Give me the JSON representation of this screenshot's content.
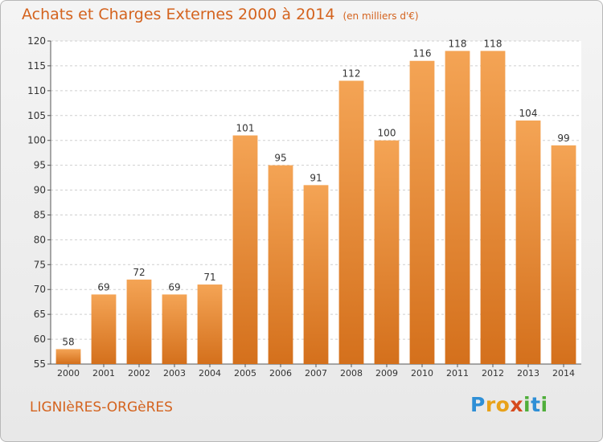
{
  "title": "Achats et Charges Externes 2000 à 2014",
  "subtitle": "(en milliers d'€)",
  "commune": "LIGNIèRES-ORGèRES",
  "logo": {
    "letters": [
      "P",
      "r",
      "o",
      "x",
      "i",
      "t",
      "i"
    ],
    "colors": [
      "#2e8fd6",
      "#e8a21a",
      "#e8a21a",
      "#d64b1e",
      "#4fae3a",
      "#2e8fd6",
      "#4fae3a"
    ]
  },
  "colors": {
    "accent": "#d4631e",
    "bar_top": "#f4a455",
    "bar_bottom": "#d4701c"
  },
  "chart_data": {
    "type": "bar",
    "categories": [
      "2000",
      "2001",
      "2002",
      "2003",
      "2004",
      "2005",
      "2006",
      "2007",
      "2008",
      "2009",
      "2010",
      "2011",
      "2012",
      "2013",
      "2014"
    ],
    "values": [
      58,
      69,
      72,
      69,
      71,
      101,
      95,
      91,
      112,
      100,
      116,
      118,
      118,
      104,
      99
    ],
    "data_labels": [
      "58",
      "69",
      "72",
      "69",
      "71",
      "101",
      "95",
      "91",
      "112",
      "100",
      "116",
      "118",
      "118",
      "104",
      "99"
    ],
    "title": "Achats et Charges Externes 2000 à 2014",
    "subtitle": "(en milliers d'€)",
    "xlabel": "",
    "ylabel": "",
    "ylim": [
      55,
      120
    ],
    "yticks": [
      55,
      60,
      65,
      70,
      75,
      80,
      85,
      90,
      95,
      100,
      105,
      110,
      115,
      120
    ],
    "grid": true,
    "legend": "none"
  }
}
